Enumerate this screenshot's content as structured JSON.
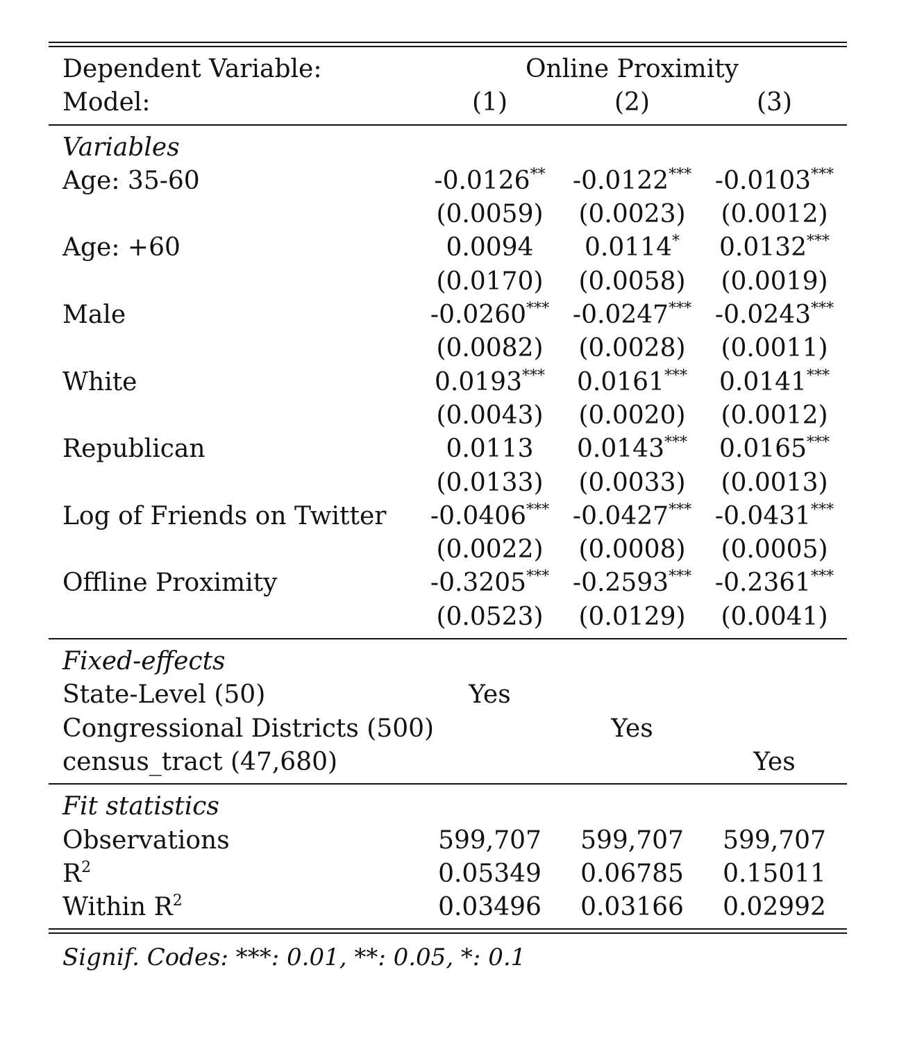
{
  "header": {
    "dep_var_label": "Dependent Variable:",
    "dep_var_value": "Online Proximity",
    "model_label": "Model:",
    "models": [
      "(1)",
      "(2)",
      "(3)"
    ]
  },
  "sections": {
    "variables_title": "Variables",
    "fixed_effects_title": "Fixed-effects",
    "fit_title": "Fit statistics"
  },
  "variables": [
    {
      "label": "Age: 35-60",
      "coefs": [
        "-0.0126",
        "-0.0122",
        "-0.0103"
      ],
      "stars": [
        "**",
        "***",
        "***"
      ],
      "ses": [
        "(0.0059)",
        "(0.0023)",
        "(0.0012)"
      ]
    },
    {
      "label": "Age: +60",
      "coefs": [
        "0.0094",
        "0.0114",
        "0.0132"
      ],
      "stars": [
        "",
        "*",
        "***"
      ],
      "ses": [
        "(0.0170)",
        "(0.0058)",
        "(0.0019)"
      ]
    },
    {
      "label": "Male",
      "coefs": [
        "-0.0260",
        "-0.0247",
        "-0.0243"
      ],
      "stars": [
        "***",
        "***",
        "***"
      ],
      "ses": [
        "(0.0082)",
        "(0.0028)",
        "(0.0011)"
      ]
    },
    {
      "label": "White",
      "coefs": [
        "0.0193",
        "0.0161",
        "0.0141"
      ],
      "stars": [
        "***",
        "***",
        "***"
      ],
      "ses": [
        "(0.0043)",
        "(0.0020)",
        "(0.0012)"
      ]
    },
    {
      "label": "Republican",
      "coefs": [
        "0.0113",
        "0.0143",
        "0.0165"
      ],
      "stars": [
        "",
        "***",
        "***"
      ],
      "ses": [
        "(0.0133)",
        "(0.0033)",
        "(0.0013)"
      ]
    },
    {
      "label": "Log of Friends on Twitter",
      "coefs": [
        "-0.0406",
        "-0.0427",
        "-0.0431"
      ],
      "stars": [
        "***",
        "***",
        "***"
      ],
      "ses": [
        "(0.0022)",
        "(0.0008)",
        "(0.0005)"
      ]
    },
    {
      "label": "Offline Proximity",
      "coefs": [
        "-0.3205",
        "-0.2593",
        "-0.2361"
      ],
      "stars": [
        "***",
        "***",
        "***"
      ],
      "ses": [
        "(0.0523)",
        "(0.0129)",
        "(0.0041)"
      ]
    }
  ],
  "fixed_effects": [
    {
      "label": "State-Level (50)",
      "values": [
        "Yes",
        "",
        ""
      ]
    },
    {
      "label": "Congressional Districts (500)",
      "values": [
        "",
        "Yes",
        ""
      ]
    },
    {
      "label": "census_tract (47,680)",
      "values": [
        "",
        "",
        "Yes"
      ]
    }
  ],
  "fit": {
    "observations_label": "Observations",
    "observations": [
      "599,707",
      "599,707",
      "599,707"
    ],
    "r2_label": "R",
    "r2_sup": "2",
    "r2": [
      "0.05349",
      "0.06785",
      "0.15011"
    ],
    "within_r2_label": "Within R",
    "within_r2_sup": "2",
    "within_r2": [
      "0.03496",
      "0.03166",
      "0.02992"
    ]
  },
  "notes": "Signif. Codes: ***: 0.01, **: 0.05, *: 0.1"
}
